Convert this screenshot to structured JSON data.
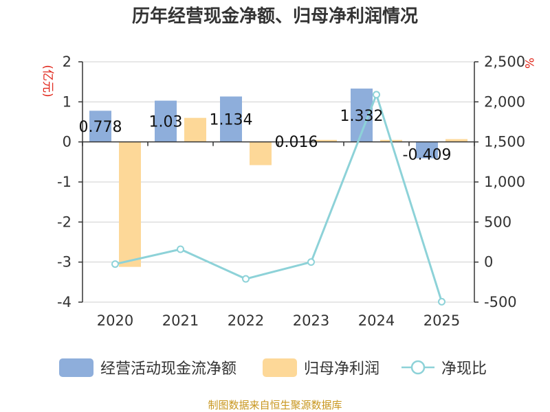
{
  "chart_data": {
    "type": "bar+line",
    "title": "历年经营现金净额、归母净利润情况",
    "categories": [
      "2020",
      "2021",
      "2022",
      "2023",
      "2024",
      "2025"
    ],
    "series": [
      {
        "name": "经营活动现金流净额",
        "type": "bar",
        "axis": "left",
        "color": "#8eaedb",
        "values": [
          0.778,
          1.03,
          1.134,
          0.016,
          1.332,
          -0.409
        ],
        "labels": [
          "0.778",
          "1.03",
          "1.134",
          "0.016",
          "1.332",
          "-0.409"
        ]
      },
      {
        "name": "归母净利润",
        "type": "bar",
        "axis": "left",
        "color": "#fdd898",
        "values": [
          -3.12,
          0.6,
          -0.58,
          0.05,
          0.05,
          0.07
        ]
      },
      {
        "name": "净现比",
        "type": "line",
        "axis": "right",
        "color": "#8dd2d8",
        "values": [
          -25,
          160,
          -210,
          0,
          2090,
          -495
        ]
      }
    ],
    "y_left": {
      "unit": "(亿元)",
      "min": -4,
      "max": 2,
      "ticks": [
        2,
        1,
        0,
        -1,
        -2,
        -3,
        -4
      ],
      "tick_labels": [
        "2",
        "1",
        "0",
        "-1",
        "-2",
        "-3",
        "-4"
      ]
    },
    "y_right": {
      "unit": "%",
      "min": -500,
      "max": 2500,
      "ticks": [
        2500,
        2000,
        1500,
        1000,
        500,
        0,
        -500
      ],
      "tick_labels": [
        "2,500",
        "2,000",
        "1,500",
        "1,000",
        "500",
        "0",
        "-500"
      ]
    },
    "grid": true,
    "legend": "bottom"
  },
  "source": "制图数据来自恒生聚源数据库"
}
